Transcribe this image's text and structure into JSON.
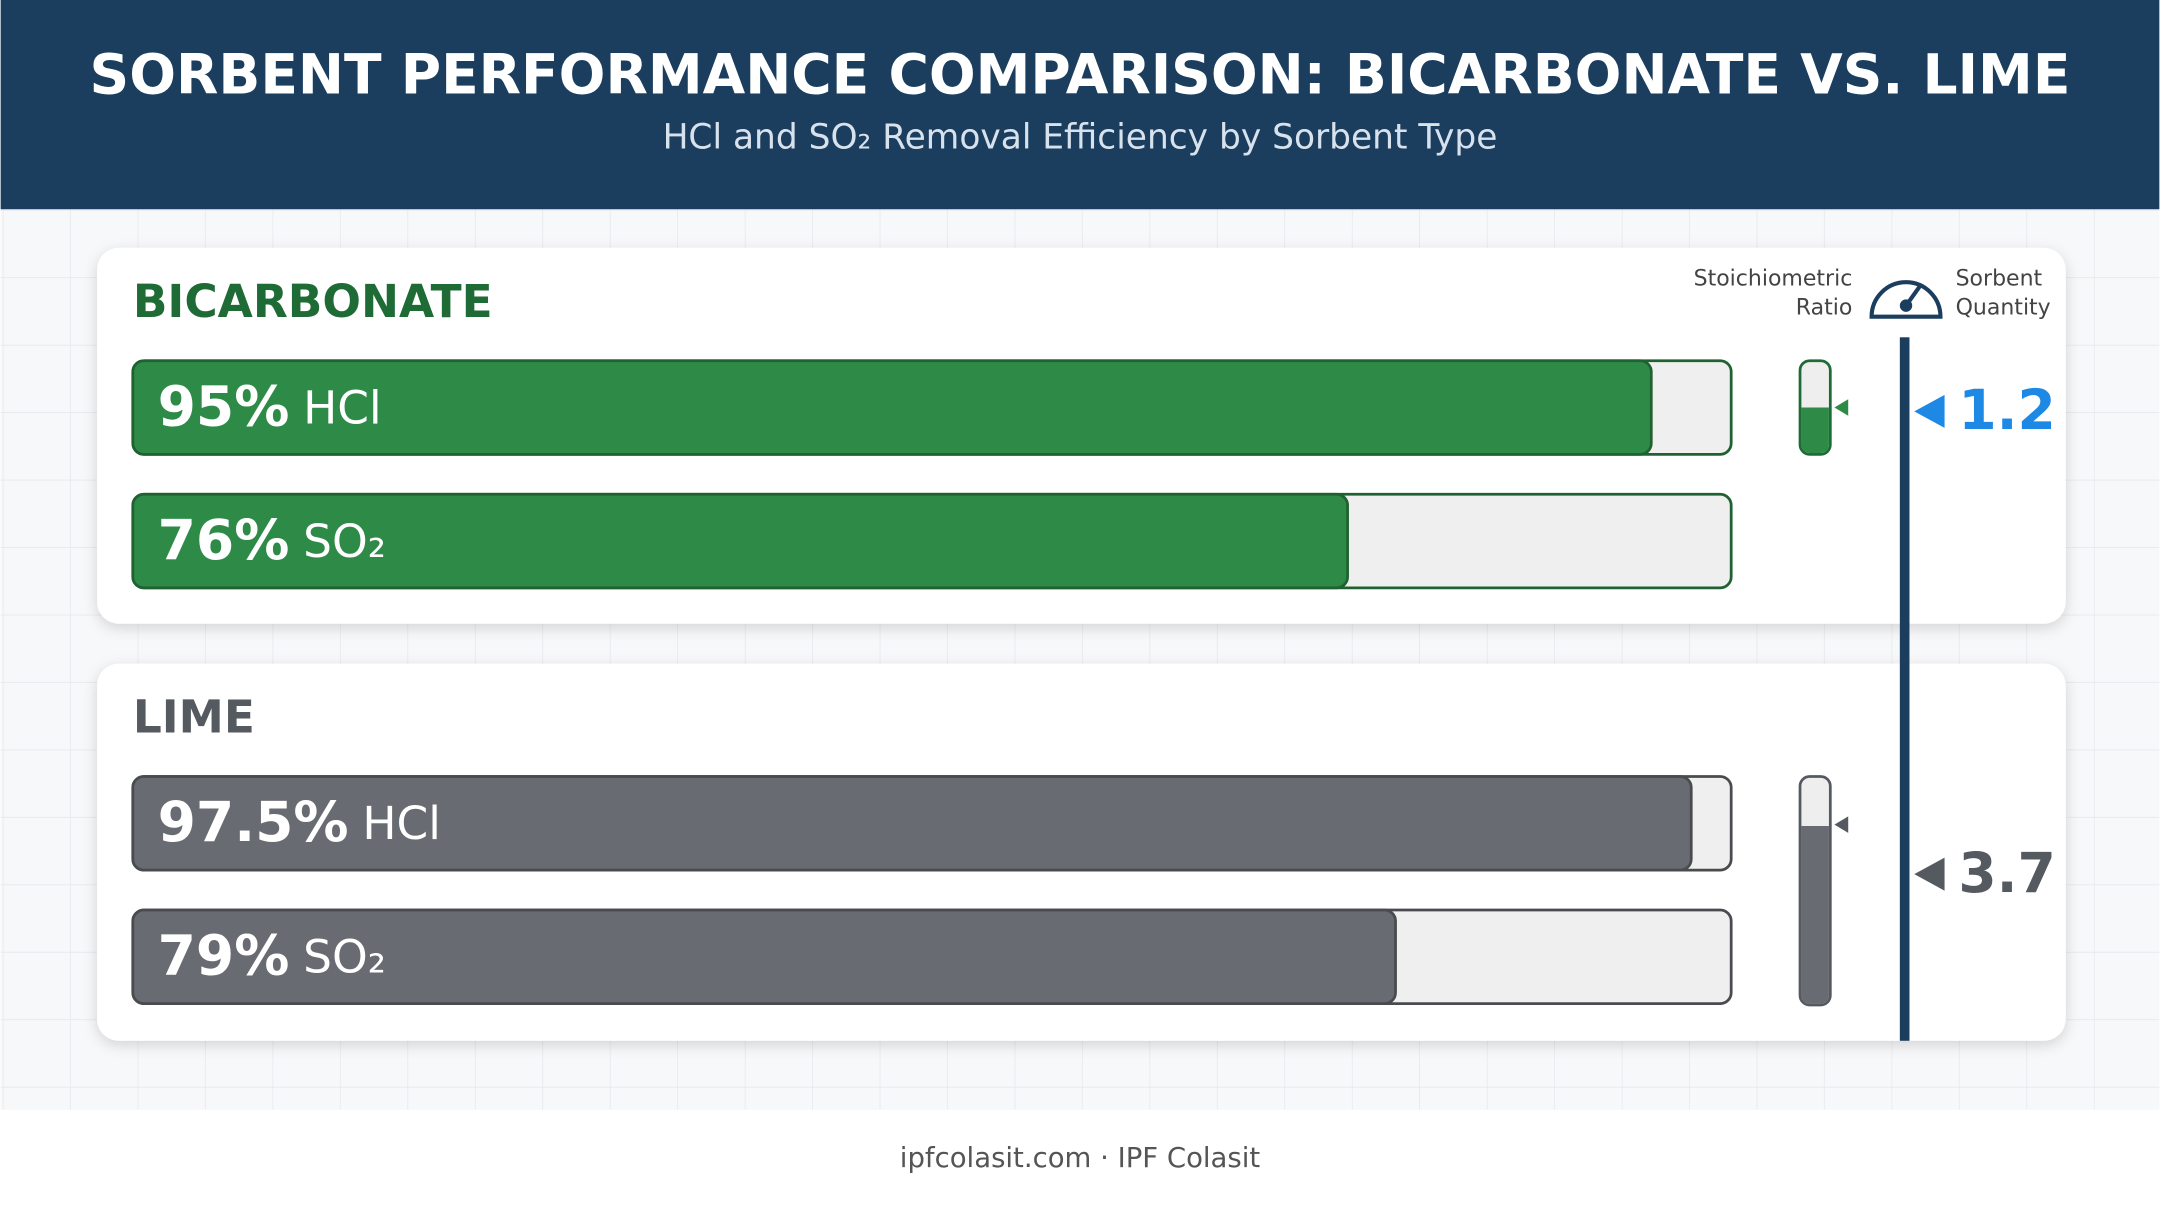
{
  "header": {
    "title": "SORBENT PERFORMANCE COMPARISON: BICARBONATE VS. LIME",
    "subtitle": "HCl and SO₂ Removal Efficiency by Sorbent Type"
  },
  "chart_data": [
    {
      "type": "bar",
      "orientation": "horizontal",
      "title": "BICARBONATE",
      "categories": [
        "HCl",
        "SO₂"
      ],
      "values": [
        95,
        76
      ],
      "value_labels": [
        "95%",
        "76%"
      ],
      "color": "#2e8b47",
      "xlim": [
        0,
        100
      ]
    },
    {
      "type": "bar",
      "orientation": "horizontal",
      "title": "LIME",
      "categories": [
        "HCl",
        "SO₂"
      ],
      "values": [
        97.5,
        79
      ],
      "value_labels": [
        "97.5%",
        "79%"
      ],
      "color": "#686b71",
      "xlim": [
        0,
        100
      ]
    }
  ],
  "ratio_scale": {
    "left_label": [
      "Stoichiometric",
      "Ratio"
    ],
    "right_label": [
      "Sorbent",
      "Quantity"
    ],
    "ylim": [
      0.8,
      4.6
    ],
    "values": [
      1.2,
      3.7
    ],
    "colors": [
      "#1e88e5",
      "#555a60"
    ]
  },
  "footer": "ipfcolasit.com · IPF Colasit"
}
